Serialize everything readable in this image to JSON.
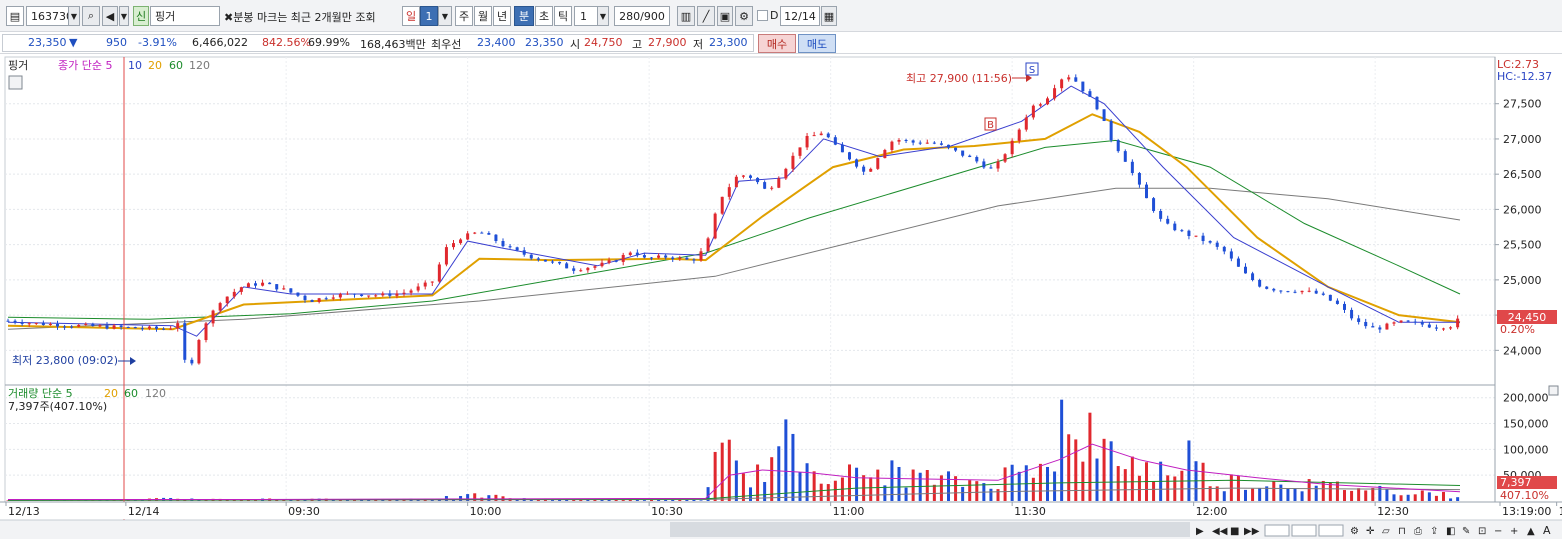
{
  "toolbar": {
    "code": "163730",
    "credit_badge": "신",
    "name": "핑거",
    "notice": "분봉 마크는 최근 2개월만 조회",
    "period_buttons": [
      "일",
      "1",
      "주",
      "월",
      "년",
      "분",
      "초",
      "틱"
    ],
    "interval": "1",
    "count": "280/900",
    "d_label": "D",
    "date": "12/14"
  },
  "info": {
    "price": "23,350",
    "change_arrow": "▼",
    "change": "950",
    "change_pct": "-3.91%",
    "volume": "6,466,022",
    "volume_ratio": "842.56%",
    "strength": "69.99%",
    "amount": "168,463백만",
    "best_bid_label": "최우선",
    "ask": "23,400",
    "bid": "23,350",
    "open_label": "시",
    "open": "24,750",
    "high_label": "고",
    "high": "27,900",
    "low_label": "저",
    "low": "23,300",
    "buy_button": "매수",
    "sell_button": "매도"
  },
  "legend": {
    "name": "핑거",
    "ma_label": "종가 단순 5",
    "ma_periods": [
      "10",
      "20",
      "60",
      "120"
    ],
    "vol_label": "거래량 단순 5",
    "vol_periods": [
      "20",
      "60",
      "120"
    ],
    "vol_value": "7,397주(407.10%)"
  },
  "annotations": {
    "high": "최고 27,900 (11:56)",
    "low": "최저 23,800 (09:02)",
    "lc": "LC:2.73",
    "hc": "HC:-12.37",
    "price_tag": "24,450",
    "pct_tag": "0.20%",
    "vol_tag": "7,397",
    "vol_pct_tag": "407.10%",
    "s_mark": "S",
    "b_mark": "B"
  },
  "chart_data": {
    "type": "candlestick",
    "price_ticks": [
      "27,500",
      "27,000",
      "26,500",
      "26,000",
      "25,500",
      "25,000",
      "24,500",
      "24,000"
    ],
    "volume_ticks": [
      "200,000",
      "150,000",
      "100,000",
      "50,000"
    ],
    "time_labels": [
      "12/13",
      "12/14",
      "09:30",
      "10:00",
      "10:30",
      "11:00",
      "11:30",
      "12:00",
      "12:30",
      "13:00",
      "13:19:00"
    ],
    "price_path": [
      [
        0,
        24420
      ],
      [
        12,
        24380
      ],
      [
        30,
        24350
      ],
      [
        52,
        24320
      ],
      [
        68,
        24300
      ],
      [
        72,
        24400
      ],
      [
        74,
        23850
      ],
      [
        78,
        23800
      ],
      [
        82,
        24300
      ],
      [
        90,
        24700
      ],
      [
        100,
        24920
      ],
      [
        108,
        24950
      ],
      [
        118,
        24850
      ],
      [
        128,
        24700
      ],
      [
        138,
        24780
      ],
      [
        148,
        24800
      ],
      [
        158,
        24780
      ],
      [
        168,
        24820
      ],
      [
        175,
        24900
      ],
      [
        180,
        24980
      ],
      [
        186,
        25450
      ],
      [
        192,
        25600
      ],
      [
        200,
        25680
      ],
      [
        206,
        25580
      ],
      [
        212,
        25450
      ],
      [
        220,
        25350
      ],
      [
        230,
        25250
      ],
      [
        240,
        25150
      ],
      [
        250,
        25200
      ],
      [
        258,
        25280
      ],
      [
        265,
        25420
      ],
      [
        270,
        25300
      ],
      [
        280,
        25330
      ],
      [
        290,
        25270
      ],
      [
        296,
        25450
      ],
      [
        302,
        26150
      ],
      [
        310,
        26500
      ],
      [
        316,
        26450
      ],
      [
        322,
        26250
      ],
      [
        330,
        26600
      ],
      [
        338,
        27000
      ],
      [
        346,
        27100
      ],
      [
        352,
        26850
      ],
      [
        358,
        26700
      ],
      [
        364,
        26500
      ],
      [
        370,
        26800
      ],
      [
        376,
        27000
      ],
      [
        384,
        26950
      ],
      [
        392,
        26950
      ],
      [
        400,
        26850
      ],
      [
        410,
        26700
      ],
      [
        418,
        26550
      ],
      [
        426,
        26950
      ],
      [
        434,
        27450
      ],
      [
        440,
        27550
      ],
      [
        446,
        27850
      ],
      [
        451,
        27900
      ],
      [
        456,
        27700
      ],
      [
        462,
        27450
      ],
      [
        468,
        27000
      ],
      [
        474,
        26700
      ],
      [
        482,
        26200
      ],
      [
        490,
        25800
      ],
      [
        500,
        25650
      ],
      [
        508,
        25550
      ],
      [
        516,
        25400
      ],
      [
        524,
        25100
      ],
      [
        532,
        24900
      ],
      [
        540,
        24850
      ],
      [
        548,
        24850
      ],
      [
        556,
        24800
      ],
      [
        564,
        24650
      ],
      [
        572,
        24400
      ],
      [
        580,
        24300
      ],
      [
        590,
        24400
      ],
      [
        598,
        24380
      ],
      [
        606,
        24330
      ],
      [
        612,
        24350
      ],
      [
        616,
        24450
      ]
    ],
    "ma5_path": [
      [
        0,
        24400
      ],
      [
        70,
        24350
      ],
      [
        80,
        24200
      ],
      [
        100,
        24900
      ],
      [
        120,
        24800
      ],
      [
        180,
        24800
      ],
      [
        195,
        25550
      ],
      [
        210,
        25450
      ],
      [
        250,
        25200
      ],
      [
        270,
        25380
      ],
      [
        296,
        25350
      ],
      [
        310,
        26400
      ],
      [
        330,
        26450
      ],
      [
        346,
        27000
      ],
      [
        370,
        26750
      ],
      [
        400,
        26900
      ],
      [
        430,
        27250
      ],
      [
        451,
        27750
      ],
      [
        465,
        27500
      ],
      [
        490,
        26600
      ],
      [
        520,
        25600
      ],
      [
        560,
        24900
      ],
      [
        590,
        24400
      ],
      [
        616,
        24400
      ]
    ],
    "ma20_path": [
      [
        0,
        24350
      ],
      [
        70,
        24300
      ],
      [
        100,
        24650
      ],
      [
        180,
        24780
      ],
      [
        200,
        25300
      ],
      [
        230,
        25280
      ],
      [
        280,
        25300
      ],
      [
        296,
        25280
      ],
      [
        320,
        25900
      ],
      [
        350,
        26600
      ],
      [
        380,
        26850
      ],
      [
        410,
        26900
      ],
      [
        440,
        27000
      ],
      [
        460,
        27350
      ],
      [
        480,
        27100
      ],
      [
        500,
        26600
      ],
      [
        530,
        25600
      ],
      [
        560,
        24900
      ],
      [
        590,
        24500
      ],
      [
        616,
        24400
      ]
    ],
    "ma60_path": [
      [
        0,
        24470
      ],
      [
        60,
        24440
      ],
      [
        120,
        24520
      ],
      [
        180,
        24700
      ],
      [
        240,
        25050
      ],
      [
        296,
        25380
      ],
      [
        340,
        25880
      ],
      [
        390,
        26380
      ],
      [
        440,
        26880
      ],
      [
        470,
        26980
      ],
      [
        510,
        26600
      ],
      [
        550,
        25800
      ],
      [
        590,
        25200
      ],
      [
        616,
        24800
      ]
    ],
    "ma120_path": [
      [
        0,
        24300
      ],
      [
        100,
        24440
      ],
      [
        200,
        24700
      ],
      [
        300,
        25050
      ],
      [
        360,
        25550
      ],
      [
        420,
        26050
      ],
      [
        470,
        26300
      ],
      [
        510,
        26300
      ],
      [
        560,
        26150
      ],
      [
        616,
        25850
      ]
    ],
    "volume_bars": [
      [
        0,
        1200
      ],
      [
        20,
        1000
      ],
      [
        56,
        3000
      ],
      [
        74,
        6000
      ],
      [
        76,
        1500
      ],
      [
        78,
        5000
      ],
      [
        84,
        4000
      ],
      [
        92,
        3500
      ],
      [
        108,
        5000
      ],
      [
        118,
        2500
      ],
      [
        138,
        4000
      ],
      [
        160,
        3000
      ],
      [
        190,
        8000
      ],
      [
        200,
        12000
      ],
      [
        206,
        10000
      ],
      [
        220,
        4000
      ],
      [
        250,
        3500
      ],
      [
        280,
        3000
      ],
      [
        296,
        2500
      ],
      [
        300,
        80000
      ],
      [
        306,
        95000
      ],
      [
        310,
        60000
      ],
      [
        318,
        55000
      ],
      [
        330,
        120000
      ],
      [
        336,
        85000
      ],
      [
        346,
        70000
      ],
      [
        352,
        60000
      ],
      [
        364,
        50000
      ],
      [
        370,
        65000
      ],
      [
        382,
        55000
      ],
      [
        394,
        45000
      ],
      [
        414,
        40000
      ],
      [
        420,
        50000
      ],
      [
        432,
        70000
      ],
      [
        440,
        120000
      ],
      [
        444,
        90000
      ],
      [
        446,
        210000
      ],
      [
        450,
        110000
      ],
      [
        458,
        150000
      ],
      [
        462,
        95000
      ],
      [
        470,
        105000
      ],
      [
        478,
        75000
      ],
      [
        486,
        70000
      ],
      [
        494,
        60000
      ],
      [
        500,
        110000
      ],
      [
        508,
        55000
      ],
      [
        514,
        40000
      ],
      [
        522,
        45000
      ],
      [
        532,
        35000
      ],
      [
        540,
        45000
      ],
      [
        548,
        38000
      ],
      [
        558,
        30000
      ],
      [
        566,
        32000
      ],
      [
        574,
        28000
      ],
      [
        584,
        25000
      ],
      [
        592,
        22000
      ],
      [
        604,
        18000
      ],
      [
        616,
        7397
      ]
    ],
    "volume_ma_path": [
      [
        0,
        3000
      ],
      [
        100,
        3000
      ],
      [
        200,
        4000
      ],
      [
        296,
        5000
      ],
      [
        306,
        50000
      ],
      [
        320,
        60000
      ],
      [
        340,
        55000
      ],
      [
        360,
        45000
      ],
      [
        420,
        40000
      ],
      [
        446,
        80000
      ],
      [
        460,
        110000
      ],
      [
        480,
        80000
      ],
      [
        500,
        60000
      ],
      [
        530,
        45000
      ],
      [
        560,
        32000
      ],
      [
        616,
        18000
      ]
    ],
    "volume_ma60_path": [
      [
        0,
        1500
      ],
      [
        200,
        3000
      ],
      [
        296,
        4000
      ],
      [
        360,
        25000
      ],
      [
        446,
        35000
      ],
      [
        520,
        40000
      ],
      [
        616,
        30000
      ]
    ],
    "volume_ma120_path": [
      [
        0,
        1000
      ],
      [
        296,
        3000
      ],
      [
        420,
        18000
      ],
      [
        520,
        25000
      ],
      [
        616,
        22000
      ]
    ],
    "price_range": [
      23650,
      27950
    ],
    "volume_range": [
      0,
      215000
    ],
    "last_price": 24450
  }
}
